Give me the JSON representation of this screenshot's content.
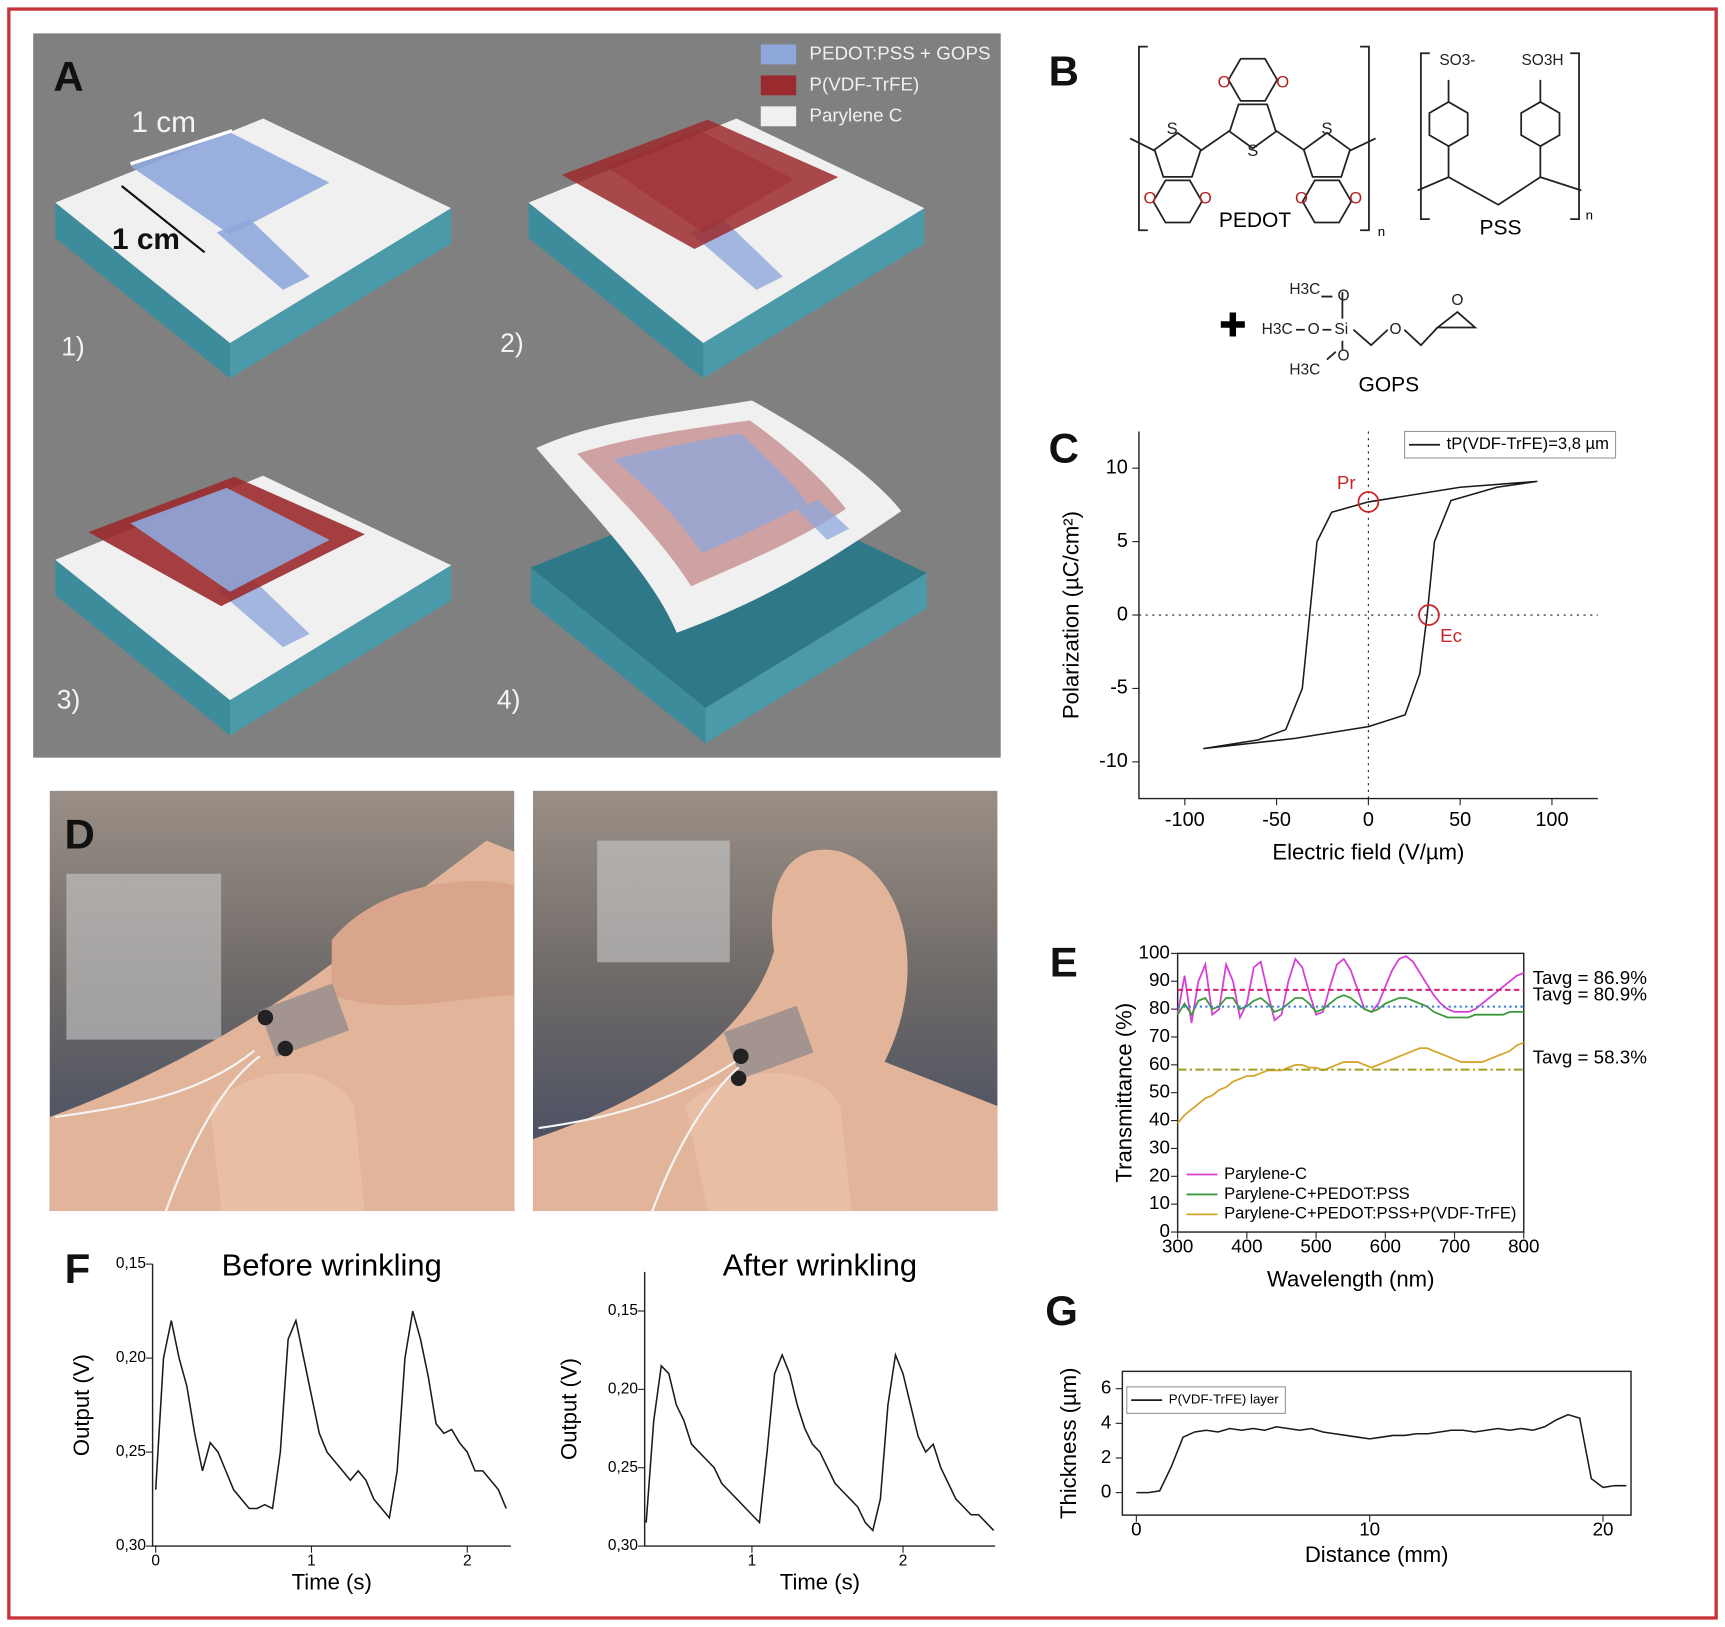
{
  "panel_labels": [
    "A",
    "B",
    "C",
    "D",
    "E",
    "F",
    "G"
  ],
  "panel_a": {
    "legend": [
      {
        "name": "PEDOT:PSS + GOPS",
        "color": "#8fa8dc"
      },
      {
        "name": "P(VDF-TrFE)",
        "color": "#9b2a2e"
      },
      {
        "name": "Parylene C",
        "color": "#f0f0f0"
      }
    ],
    "scale_labels": [
      "1 cm",
      "1 cm"
    ],
    "steps": [
      "1)",
      "2)",
      "3)",
      "4)"
    ]
  },
  "panel_b": {
    "polymers": [
      "PEDOT",
      "PSS"
    ],
    "crosslinker": "GOPS",
    "repeat": [
      "n",
      "n"
    ],
    "atoms": [
      "S",
      "S",
      "S",
      "O",
      "O",
      "O",
      "O",
      "O",
      "O"
    ],
    "groups": [
      "SO3-",
      "SO3H",
      "H3C",
      "H3C",
      "H3C",
      "O",
      "O",
      "O",
      "Si",
      "O",
      "O"
    ]
  },
  "chart_data": [
    {
      "type": "line",
      "xlabel": "Electric field (V/µm)",
      "ylabel": "Polarization (µC/cm²)",
      "xlim": [
        -125,
        125
      ],
      "ylim": [
        -12.5,
        12.5
      ],
      "xticks": [
        -100,
        -50,
        0,
        50,
        100
      ],
      "yticks": [
        -10,
        -5,
        0,
        5,
        10
      ],
      "legend": "upper right",
      "series": [
        {
          "name": "tP(VDF-TrFE)=3,8 µm",
          "color": "#1a1a1a",
          "x": [
            92,
            50,
            0,
            -20,
            -28,
            -32,
            -36,
            -45,
            -60,
            -90,
            -40,
            0,
            20,
            28,
            32,
            36,
            45,
            70,
            92
          ],
          "values": [
            9.1,
            8.7,
            7.7,
            7,
            5,
            0,
            -5,
            -7.8,
            -8.5,
            -9.1,
            -8.4,
            -7.6,
            -6.8,
            -4,
            0,
            5,
            7.8,
            8.7,
            9.1
          ]
        }
      ],
      "annotations": [
        {
          "label": "Pr",
          "x": 0,
          "y": 7.7
        },
        {
          "label": "Ec",
          "x": 33,
          "y": 0
        }
      ]
    },
    {
      "type": "line",
      "xlabel": "Wavelength (nm)",
      "ylabel": "Transmittance (%)",
      "xlim": [
        300,
        800
      ],
      "ylim": [
        0,
        100
      ],
      "xticks": [
        300,
        400,
        500,
        600,
        700,
        800
      ],
      "yticks": [
        0,
        10,
        20,
        30,
        40,
        50,
        60,
        70,
        80,
        90,
        100
      ],
      "legend": "lower left",
      "x": [
        300,
        310,
        320,
        330,
        340,
        350,
        360,
        370,
        380,
        390,
        400,
        410,
        420,
        430,
        440,
        450,
        460,
        470,
        480,
        490,
        500,
        510,
        520,
        530,
        540,
        550,
        560,
        570,
        580,
        590,
        600,
        610,
        620,
        630,
        640,
        650,
        660,
        670,
        680,
        690,
        700,
        710,
        720,
        730,
        740,
        750,
        760,
        770,
        780,
        790,
        800
      ],
      "series": [
        {
          "name": "Parylene-C",
          "color": "#d63fd6",
          "average": 86.9,
          "average_label": "Tavg = 86.9%",
          "average_color": "#d6207a",
          "values": [
            78,
            92,
            75,
            90,
            96,
            78,
            80,
            96,
            90,
            77,
            82,
            95,
            97,
            86,
            76,
            78,
            90,
            98,
            95,
            86,
            78,
            79,
            88,
            96,
            98,
            94,
            87,
            80,
            79,
            82,
            88,
            94,
            98,
            99,
            97,
            93,
            89,
            85,
            82,
            80,
            79,
            79,
            79,
            80,
            82,
            84,
            86,
            88,
            90,
            92,
            93
          ]
        },
        {
          "name": "Parylene-C+PEDOT:PSS",
          "color": "#3b9a3b",
          "average": 80.9,
          "average_label": "Tavg = 80.9%",
          "average_color": "#3a7bd5",
          "values": [
            78,
            82,
            78,
            83,
            84,
            80,
            81,
            84,
            84,
            80,
            81,
            83,
            84,
            82,
            79,
            80,
            82,
            84,
            84,
            82,
            79,
            80,
            82,
            84,
            85,
            84,
            82,
            80,
            79,
            80,
            82,
            83,
            84,
            84,
            83,
            82,
            81,
            79,
            78,
            77,
            77,
            77,
            77,
            78,
            78,
            78,
            78,
            78,
            79,
            79,
            79
          ]
        },
        {
          "name": "Parylene-C+PEDOT:PSS+P(VDF-TrFE)",
          "color": "#d4a52a",
          "average": 58.3,
          "average_label": "Tavg = 58.3%",
          "average_color": "#a0a020",
          "values": [
            39,
            42,
            44,
            46,
            48,
            49,
            51,
            52,
            54,
            55,
            56,
            56,
            57,
            58,
            58,
            58,
            59,
            60,
            60,
            59,
            59,
            58,
            59,
            60,
            61,
            61,
            61,
            60,
            59,
            60,
            61,
            62,
            63,
            64,
            65,
            66,
            66,
            65,
            64,
            63,
            62,
            61,
            61,
            61,
            61,
            62,
            63,
            64,
            65,
            67,
            68
          ]
        }
      ]
    },
    {
      "type": "line",
      "title": "Before wrinkling",
      "xlabel": "Time (s)",
      "ylabel": "Output (V)",
      "xlim": [
        -0.02,
        2.28
      ],
      "ylim": [
        0.15,
        0.3
      ],
      "y_reversed": true,
      "xticks": [
        0,
        1,
        2
      ],
      "yticks": [
        {
          "value": 0.15,
          "label": "0,15"
        },
        {
          "value": 0.2,
          "label": "0,20"
        },
        {
          "value": 0.25,
          "label": "0,25"
        },
        {
          "value": 0.3,
          "label": "0,30"
        }
      ],
      "x": [
        0,
        0.05,
        0.1,
        0.15,
        0.2,
        0.25,
        0.3,
        0.35,
        0.4,
        0.45,
        0.5,
        0.55,
        0.6,
        0.65,
        0.7,
        0.75,
        0.8,
        0.85,
        0.9,
        0.95,
        1,
        1.05,
        1.1,
        1.15,
        1.2,
        1.25,
        1.3,
        1.35,
        1.4,
        1.45,
        1.5,
        1.55,
        1.6,
        1.65,
        1.7,
        1.75,
        1.8,
        1.85,
        1.9,
        1.95,
        2,
        2.05,
        2.1,
        2.15,
        2.2,
        2.25
      ],
      "series": [
        {
          "color": "#1a1a1a",
          "values": [
            0.27,
            0.2,
            0.18,
            0.2,
            0.215,
            0.24,
            0.26,
            0.245,
            0.25,
            0.26,
            0.27,
            0.275,
            0.28,
            0.28,
            0.278,
            0.28,
            0.25,
            0.19,
            0.18,
            0.2,
            0.22,
            0.24,
            0.25,
            0.255,
            0.26,
            0.265,
            0.26,
            0.265,
            0.275,
            0.28,
            0.285,
            0.26,
            0.2,
            0.175,
            0.19,
            0.21,
            0.235,
            0.24,
            0.238,
            0.245,
            0.25,
            0.26,
            0.26,
            0.265,
            0.27,
            0.28
          ]
        }
      ]
    },
    {
      "type": "line",
      "title": "After wrinkling",
      "xlabel": "Time (s)",
      "ylabel": "Output (V)",
      "xlim": [
        0.29,
        2.61
      ],
      "ylim": [
        0.125,
        0.3
      ],
      "y_reversed": true,
      "xticks": [
        1,
        2
      ],
      "yticks": [
        {
          "value": 0.15,
          "label": "0,15"
        },
        {
          "value": 0.2,
          "label": "0,20"
        },
        {
          "value": 0.25,
          "label": "0,25"
        },
        {
          "value": 0.3,
          "label": "0,30"
        }
      ],
      "x": [
        0.3,
        0.35,
        0.4,
        0.45,
        0.5,
        0.55,
        0.6,
        0.65,
        0.7,
        0.75,
        0.8,
        0.85,
        0.9,
        0.95,
        1,
        1.05,
        1.1,
        1.15,
        1.2,
        1.25,
        1.3,
        1.35,
        1.4,
        1.45,
        1.5,
        1.55,
        1.6,
        1.65,
        1.7,
        1.75,
        1.8,
        1.85,
        1.9,
        1.95,
        2,
        2.05,
        2.1,
        2.15,
        2.2,
        2.25,
        2.3,
        2.35,
        2.4,
        2.45,
        2.5,
        2.55,
        2.6
      ],
      "series": [
        {
          "color": "#1a1a1a",
          "values": [
            0.285,
            0.22,
            0.185,
            0.19,
            0.21,
            0.22,
            0.235,
            0.24,
            0.245,
            0.25,
            0.26,
            0.265,
            0.27,
            0.275,
            0.28,
            0.285,
            0.24,
            0.19,
            0.178,
            0.19,
            0.21,
            0.225,
            0.235,
            0.24,
            0.25,
            0.26,
            0.265,
            0.27,
            0.275,
            0.285,
            0.29,
            0.27,
            0.21,
            0.178,
            0.19,
            0.21,
            0.23,
            0.24,
            0.235,
            0.25,
            0.26,
            0.27,
            0.275,
            0.28,
            0.28,
            0.285,
            0.29
          ]
        }
      ]
    },
    {
      "type": "line",
      "xlabel": "Distance (mm)",
      "ylabel": "Thickness (µm)",
      "xlim": [
        -0.6,
        21.2
      ],
      "ylim": [
        -1.3,
        7
      ],
      "xticks": [
        0,
        10,
        20
      ],
      "yticks": [
        0,
        2,
        4,
        6
      ],
      "legend": "upper left",
      "x": [
        0,
        0.5,
        1,
        1.5,
        2,
        2.5,
        3,
        3.5,
        4,
        4.5,
        5,
        5.5,
        6,
        6.5,
        7,
        7.5,
        8,
        8.5,
        9,
        9.5,
        10,
        10.5,
        11,
        11.5,
        12,
        12.5,
        13,
        13.5,
        14,
        14.5,
        15,
        15.5,
        16,
        16.5,
        17,
        17.5,
        18,
        18.5,
        19,
        19.5,
        20,
        20.5,
        21
      ],
      "series": [
        {
          "name": "P(VDF-TrFE) layer",
          "color": "#1a1a1a",
          "values": [
            0,
            0,
            0.1,
            1.5,
            3.2,
            3.5,
            3.6,
            3.5,
            3.7,
            3.6,
            3.7,
            3.6,
            3.8,
            3.7,
            3.6,
            3.7,
            3.5,
            3.4,
            3.3,
            3.2,
            3.1,
            3.2,
            3.3,
            3.3,
            3.4,
            3.4,
            3.5,
            3.6,
            3.6,
            3.5,
            3.6,
            3.7,
            3.6,
            3.7,
            3.6,
            3.8,
            4.2,
            4.5,
            4.3,
            0.8,
            0.3,
            0.4,
            0.4
          ]
        }
      ]
    }
  ]
}
